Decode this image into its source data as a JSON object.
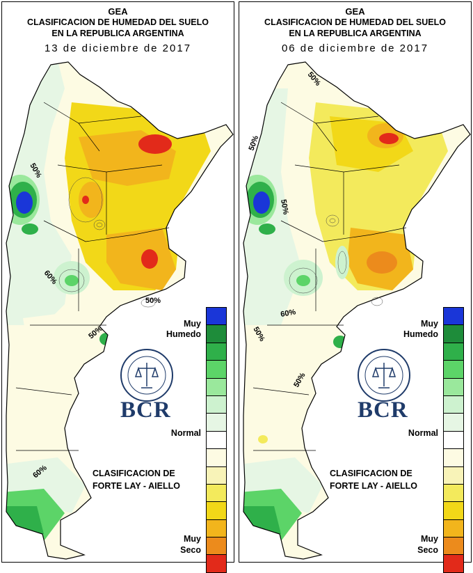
{
  "panels": [
    {
      "org": "GEA",
      "title_line1": "CLASIFICACION DE HUMEDAD DEL SUELO",
      "title_line2": "EN LA REPUBLICA ARGENTINA",
      "date": "13 de diciembre de 2017",
      "labels_on_map": [
        "50%",
        "60%",
        "50%",
        "50%",
        "60%"
      ]
    },
    {
      "org": "GEA",
      "title_line1": "CLASIFICACION DE HUMEDAD DEL SUELO",
      "title_line2": "EN LA REPUBLICA ARGENTINA",
      "date": "06 de diciembre de 2017",
      "labels_on_map": [
        "50%",
        "50%",
        "50%",
        "50%",
        "50%",
        "60%"
      ]
    }
  ],
  "legend": {
    "top_label_1": "Muy",
    "top_label_2": "Humedo",
    "mid_label": "Normal",
    "bottom_label_1": "Muy",
    "bottom_label_2": "Seco",
    "colors": [
      "#1a36d8",
      "#1e8c3a",
      "#2fb04a",
      "#5cd468",
      "#9ae89c",
      "#cdf2cf",
      "#e6f6e4",
      "#ffffff",
      "#fdfbe3",
      "#f8f3b8",
      "#f3ea5c",
      "#f2d818",
      "#f2b51c",
      "#ec8b1c",
      "#e22a1a"
    ]
  },
  "logo": {
    "name": "BCR"
  },
  "classification": {
    "line1": "CLASIFICACION DE",
    "line2": "FORTE LAY - AIELLO"
  }
}
